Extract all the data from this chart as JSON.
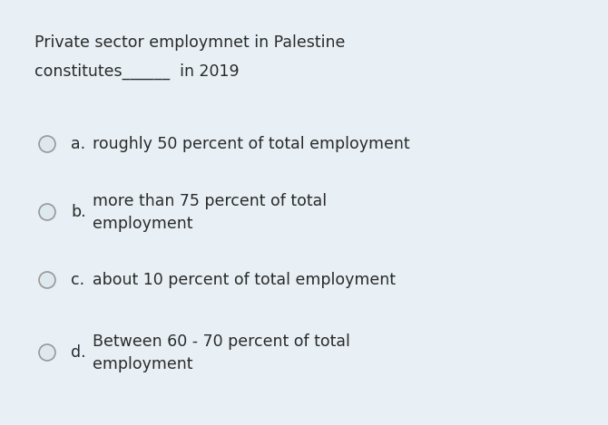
{
  "background_color": "#e8f0f5",
  "title_line1": "Private sector employmnet in Palestine",
  "title_line2": "constitutes______  in 2019",
  "options": [
    {
      "label": "a.",
      "text": "roughly 50 percent of total employment"
    },
    {
      "label": "b.",
      "text": "more than 75 percent of total\nemployment"
    },
    {
      "label": "c.",
      "text": "about 10 percent of total employment"
    },
    {
      "label": "d.",
      "text": "Between 60 - 70 percent of total\nemployment"
    }
  ],
  "text_color": "#2a2a2a",
  "circle_edge_color": "#999999",
  "circle_face_color": "#dde8ef",
  "font_size_title": 12.5,
  "font_size_option": 12.5,
  "fig_width": 6.7,
  "fig_height": 4.69,
  "dpi": 100
}
